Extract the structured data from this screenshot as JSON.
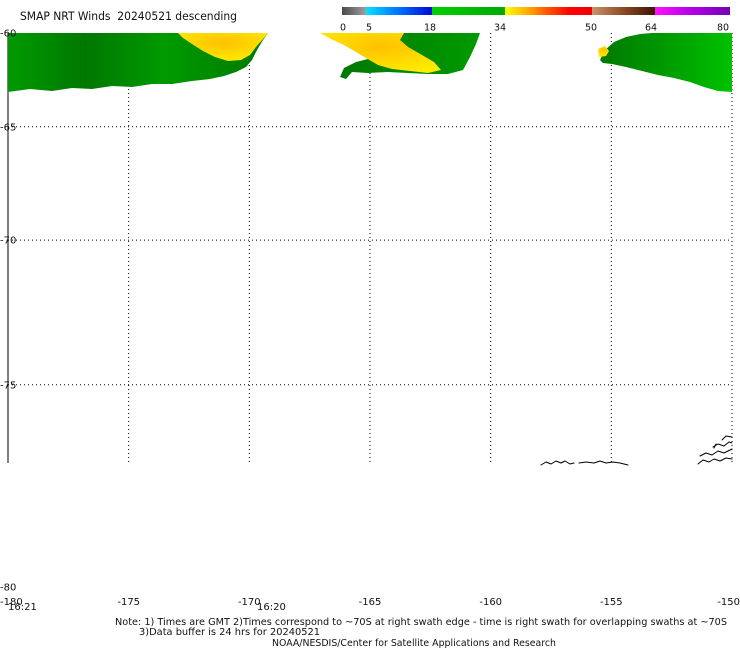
{
  "title": "SMAP NRT Winds  20240521 descending",
  "colorbar": {
    "labels": [
      "0",
      "5",
      "18",
      "34",
      "50",
      "64",
      "80"
    ],
    "bands": [
      [
        "#4a4a4a",
        "#a0a0a0"
      ],
      [
        "#00e4ff",
        "#0070ff",
        "#0008d8"
      ],
      [
        "#00d000",
        "#00a800"
      ],
      [
        "#ffff00",
        "#ffb000",
        "#ff5000",
        "#ff0000",
        "#f00000"
      ],
      [
        "#c8926c",
        "#8c4a24",
        "#3a1400"
      ],
      [
        "#ff10ff",
        "#b000e8",
        "#7400b4"
      ]
    ]
  },
  "map": {
    "lat_labels": [
      "-60",
      "-65",
      "-70",
      "-75",
      "-80"
    ],
    "lon_labels": [
      "-180",
      "-175",
      "-170",
      "-165",
      "-160",
      "-155",
      "-150"
    ],
    "time_labels": [
      "16:21",
      "16:20"
    ],
    "colors": {
      "wind_green_dark": "#007800",
      "wind_green_mid": "#009a00",
      "wind_green_light": "#00c200",
      "wind_yellow": "#ffea00",
      "wind_orange": "#ffc000",
      "coastline": "#000000",
      "gridline": "#000000"
    }
  },
  "notes": {
    "line1": "Note: 1) Times are GMT 2)Times correspond to ~70S at right swath edge - time is right swath for overlapping swaths at ~70S",
    "line2": "3)Data buffer is 24 hrs for 20240521",
    "credit": "NOAA/NESDIS/Center for Satellite Applications and Research"
  }
}
